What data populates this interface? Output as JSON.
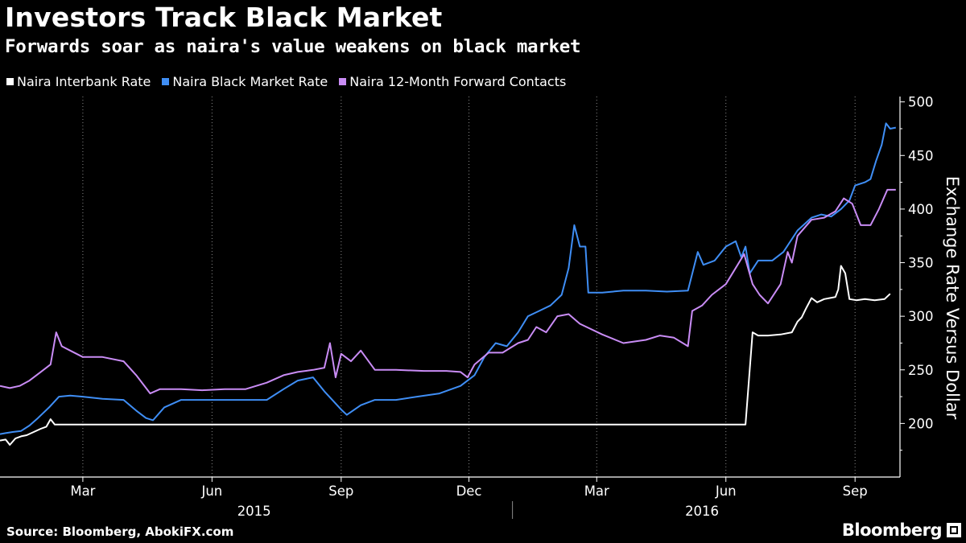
{
  "header": {
    "title": "Investors Track Black Market",
    "subtitle": "Forwards soar as naira's value weakens on black market"
  },
  "footer": {
    "source": "Source: Bloomberg, AbokiFX.com",
    "brand": "Bloomberg",
    "brand_icon": "bloomberg-logo-icon"
  },
  "chart_data": {
    "type": "line",
    "title": "Investors Track Black Market",
    "subtitle": "Forwards soar as naira's value weakens on black market",
    "ylabel": "Exchange Rate Versus Dollar",
    "xlabel": "",
    "ylim": [
      150,
      505
    ],
    "xlim": [
      "2015-01-01",
      "2016-10-03"
    ],
    "yticks": [
      200,
      250,
      300,
      350,
      400,
      450,
      500
    ],
    "x_month_ticks": [
      {
        "date": "2015-03-01",
        "label": "Mar"
      },
      {
        "date": "2015-06-01",
        "label": "Jun"
      },
      {
        "date": "2015-09-01",
        "label": "Sep"
      },
      {
        "date": "2015-12-01",
        "label": "Dec"
      },
      {
        "date": "2016-03-01",
        "label": "Mar"
      },
      {
        "date": "2016-06-01",
        "label": "Jun"
      },
      {
        "date": "2016-09-01",
        "label": "Sep"
      }
    ],
    "x_year_labels": [
      {
        "date": "2015-07-01",
        "label": "2015"
      },
      {
        "date": "2016-05-15",
        "label": "2016"
      }
    ],
    "year_separator": "2016-01-01",
    "grid": {
      "vertical": true,
      "horizontal": false,
      "style": "dotted"
    },
    "legend_position": "top-left",
    "series": [
      {
        "name": "Naira Interbank Rate",
        "color": "#ffffff",
        "points": [
          [
            "2015-01-01",
            184
          ],
          [
            "2015-01-05",
            185
          ],
          [
            "2015-01-08",
            180
          ],
          [
            "2015-01-12",
            186
          ],
          [
            "2015-01-16",
            188
          ],
          [
            "2015-01-20",
            189
          ],
          [
            "2015-01-25",
            192
          ],
          [
            "2015-01-30",
            195
          ],
          [
            "2015-02-03",
            197
          ],
          [
            "2015-02-06",
            204
          ],
          [
            "2015-02-09",
            199
          ],
          [
            "2015-02-16",
            199
          ],
          [
            "2015-02-23",
            199
          ],
          [
            "2015-03-01",
            199
          ],
          [
            "2015-04-01",
            199
          ],
          [
            "2015-05-01",
            199
          ],
          [
            "2015-06-01",
            199
          ],
          [
            "2015-07-01",
            199
          ],
          [
            "2015-08-01",
            199
          ],
          [
            "2015-09-01",
            199
          ],
          [
            "2015-10-01",
            199
          ],
          [
            "2015-11-01",
            199
          ],
          [
            "2015-12-01",
            199
          ],
          [
            "2016-01-01",
            199
          ],
          [
            "2016-02-01",
            199
          ],
          [
            "2016-03-01",
            199
          ],
          [
            "2016-04-01",
            199
          ],
          [
            "2016-05-01",
            199
          ],
          [
            "2016-06-15",
            199
          ],
          [
            "2016-06-20",
            285
          ],
          [
            "2016-06-24",
            282
          ],
          [
            "2016-07-01",
            282
          ],
          [
            "2016-07-10",
            283
          ],
          [
            "2016-07-18",
            285
          ],
          [
            "2016-07-22",
            295
          ],
          [
            "2016-07-25",
            299
          ],
          [
            "2016-07-28",
            307
          ],
          [
            "2016-08-01",
            317
          ],
          [
            "2016-08-05",
            313
          ],
          [
            "2016-08-10",
            316
          ],
          [
            "2016-08-14",
            317
          ],
          [
            "2016-08-18",
            318
          ],
          [
            "2016-08-20",
            325
          ],
          [
            "2016-08-22",
            347
          ],
          [
            "2016-08-25",
            340
          ],
          [
            "2016-08-28",
            316
          ],
          [
            "2016-09-02",
            315
          ],
          [
            "2016-09-08",
            316
          ],
          [
            "2016-09-15",
            315
          ],
          [
            "2016-09-22",
            316
          ],
          [
            "2016-09-26",
            321
          ]
        ]
      },
      {
        "name": "Naira Black Market Rate",
        "color": "#3f8ef5",
        "points": [
          [
            "2015-01-01",
            190
          ],
          [
            "2015-01-05",
            191
          ],
          [
            "2015-01-10",
            192
          ],
          [
            "2015-01-16",
            193
          ],
          [
            "2015-01-22",
            198
          ],
          [
            "2015-01-28",
            205
          ],
          [
            "2015-02-05",
            215
          ],
          [
            "2015-02-12",
            225
          ],
          [
            "2015-02-20",
            226
          ],
          [
            "2015-03-01",
            225
          ],
          [
            "2015-03-15",
            223
          ],
          [
            "2015-03-30",
            222
          ],
          [
            "2015-04-08",
            212
          ],
          [
            "2015-04-15",
            205
          ],
          [
            "2015-04-20",
            203
          ],
          [
            "2015-04-28",
            215
          ],
          [
            "2015-05-10",
            222
          ],
          [
            "2015-05-25",
            222
          ],
          [
            "2015-06-10",
            222
          ],
          [
            "2015-06-25",
            222
          ],
          [
            "2015-07-10",
            222
          ],
          [
            "2015-07-22",
            232
          ],
          [
            "2015-08-01",
            240
          ],
          [
            "2015-08-12",
            243
          ],
          [
            "2015-08-20",
            230
          ],
          [
            "2015-09-01",
            213
          ],
          [
            "2015-09-05",
            208
          ],
          [
            "2015-09-15",
            217
          ],
          [
            "2015-09-25",
            222
          ],
          [
            "2015-10-10",
            222
          ],
          [
            "2015-10-25",
            225
          ],
          [
            "2015-11-10",
            228
          ],
          [
            "2015-11-25",
            235
          ],
          [
            "2015-12-05",
            245
          ],
          [
            "2015-12-12",
            262
          ],
          [
            "2015-12-20",
            275
          ],
          [
            "2015-12-28",
            272
          ],
          [
            "2016-01-05",
            285
          ],
          [
            "2016-01-12",
            300
          ],
          [
            "2016-01-20",
            305
          ],
          [
            "2016-01-28",
            310
          ],
          [
            "2016-02-05",
            320
          ],
          [
            "2016-02-10",
            345
          ],
          [
            "2016-02-14",
            385
          ],
          [
            "2016-02-18",
            365
          ],
          [
            "2016-02-22",
            365
          ],
          [
            "2016-02-24",
            322
          ],
          [
            "2016-03-05",
            322
          ],
          [
            "2016-03-20",
            324
          ],
          [
            "2016-04-05",
            324
          ],
          [
            "2016-04-20",
            323
          ],
          [
            "2016-05-05",
            324
          ],
          [
            "2016-05-12",
            360
          ],
          [
            "2016-05-16",
            348
          ],
          [
            "2016-05-24",
            352
          ],
          [
            "2016-06-01",
            365
          ],
          [
            "2016-06-08",
            370
          ],
          [
            "2016-06-12",
            355
          ],
          [
            "2016-06-15",
            365
          ],
          [
            "2016-06-18",
            340
          ],
          [
            "2016-06-24",
            352
          ],
          [
            "2016-07-04",
            352
          ],
          [
            "2016-07-12",
            360
          ],
          [
            "2016-07-22",
            380
          ],
          [
            "2016-08-01",
            392
          ],
          [
            "2016-08-08",
            395
          ],
          [
            "2016-08-15",
            393
          ],
          [
            "2016-08-22",
            400
          ],
          [
            "2016-08-28",
            408
          ],
          [
            "2016-09-01",
            422
          ],
          [
            "2016-09-08",
            425
          ],
          [
            "2016-09-12",
            428
          ],
          [
            "2016-09-16",
            445
          ],
          [
            "2016-09-20",
            460
          ],
          [
            "2016-09-23",
            480
          ],
          [
            "2016-09-26",
            475
          ],
          [
            "2016-09-30",
            476
          ]
        ]
      },
      {
        "name": "Naira 12-Month Forward Contacts",
        "color": "#c98cf5",
        "points": [
          [
            "2015-01-01",
            235
          ],
          [
            "2015-01-08",
            233
          ],
          [
            "2015-01-15",
            235
          ],
          [
            "2015-01-22",
            240
          ],
          [
            "2015-01-30",
            248
          ],
          [
            "2015-02-06",
            255
          ],
          [
            "2015-02-10",
            285
          ],
          [
            "2015-02-14",
            272
          ],
          [
            "2015-02-20",
            268
          ],
          [
            "2015-03-01",
            262
          ],
          [
            "2015-03-15",
            262
          ],
          [
            "2015-03-30",
            258
          ],
          [
            "2015-04-08",
            245
          ],
          [
            "2015-04-18",
            228
          ],
          [
            "2015-04-25",
            232
          ],
          [
            "2015-05-10",
            232
          ],
          [
            "2015-05-25",
            231
          ],
          [
            "2015-06-10",
            232
          ],
          [
            "2015-06-25",
            232
          ],
          [
            "2015-07-10",
            238
          ],
          [
            "2015-07-22",
            245
          ],
          [
            "2015-08-01",
            248
          ],
          [
            "2015-08-12",
            250
          ],
          [
            "2015-08-20",
            252
          ],
          [
            "2015-08-24",
            275
          ],
          [
            "2015-08-28",
            243
          ],
          [
            "2015-09-01",
            265
          ],
          [
            "2015-09-08",
            258
          ],
          [
            "2015-09-15",
            268
          ],
          [
            "2015-09-25",
            250
          ],
          [
            "2015-10-10",
            250
          ],
          [
            "2015-10-30",
            249
          ],
          [
            "2015-11-15",
            249
          ],
          [
            "2015-11-25",
            248
          ],
          [
            "2015-11-30",
            243
          ],
          [
            "2015-12-05",
            255
          ],
          [
            "2015-12-15",
            266
          ],
          [
            "2015-12-25",
            266
          ],
          [
            "2016-01-05",
            275
          ],
          [
            "2016-01-12",
            278
          ],
          [
            "2016-01-18",
            290
          ],
          [
            "2016-01-25",
            285
          ],
          [
            "2016-02-02",
            300
          ],
          [
            "2016-02-10",
            302
          ],
          [
            "2016-02-18",
            293
          ],
          [
            "2016-03-05",
            283
          ],
          [
            "2016-03-20",
            275
          ],
          [
            "2016-04-05",
            278
          ],
          [
            "2016-04-15",
            282
          ],
          [
            "2016-04-25",
            280
          ],
          [
            "2016-05-05",
            272
          ],
          [
            "2016-05-08",
            305
          ],
          [
            "2016-05-15",
            310
          ],
          [
            "2016-05-22",
            320
          ],
          [
            "2016-06-01",
            330
          ],
          [
            "2016-06-08",
            345
          ],
          [
            "2016-06-14",
            358
          ],
          [
            "2016-06-20",
            330
          ],
          [
            "2016-06-25",
            320
          ],
          [
            "2016-07-01",
            312
          ],
          [
            "2016-07-10",
            330
          ],
          [
            "2016-07-15",
            360
          ],
          [
            "2016-07-18",
            350
          ],
          [
            "2016-07-22",
            375
          ],
          [
            "2016-08-01",
            390
          ],
          [
            "2016-08-10",
            392
          ],
          [
            "2016-08-18",
            398
          ],
          [
            "2016-08-24",
            410
          ],
          [
            "2016-08-30",
            405
          ],
          [
            "2016-09-05",
            385
          ],
          [
            "2016-09-12",
            385
          ],
          [
            "2016-09-18",
            400
          ],
          [
            "2016-09-24",
            418
          ],
          [
            "2016-09-30",
            418
          ]
        ]
      }
    ]
  }
}
